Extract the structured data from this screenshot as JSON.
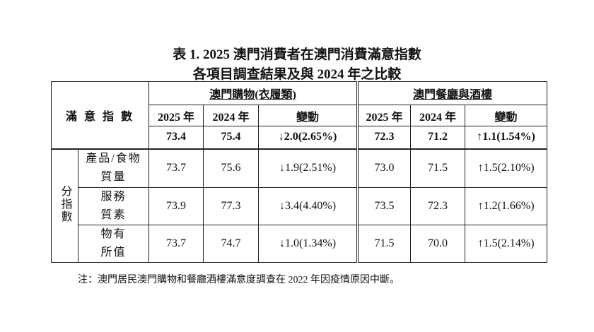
{
  "title": {
    "line1": "表 1. 2025 澳門消費者在澳門消費滿意指數",
    "line2": "各項目調查結果及與 2024 年之比較"
  },
  "table": {
    "corner": "滿 意 指 數",
    "groups": [
      "澳門購物(衣履類)",
      "澳門餐廳與酒樓"
    ],
    "subheaders": [
      "2025 年",
      "2024 年",
      "變動",
      "2025 年",
      "2024 年",
      "變動"
    ],
    "overall": [
      "73.4",
      "75.4",
      "↓2.0(2.65%)",
      "72.3",
      "71.2",
      "↑1.1(1.54%)"
    ],
    "sub_label": "分指數",
    "rows": [
      {
        "label": [
          "產品/食物",
          "質量"
        ],
        "cells": [
          "73.7",
          "75.6",
          "↓1.9(2.51%)",
          "73.0",
          "71.5",
          "↑1.5(2.10%)"
        ]
      },
      {
        "label": [
          "服務",
          "質素"
        ],
        "cells": [
          "73.9",
          "77.3",
          "↓3.4(4.40%)",
          "73.5",
          "72.3",
          "↑1.2(1.66%)"
        ]
      },
      {
        "label": [
          "物有",
          "所值"
        ],
        "cells": [
          "73.7",
          "74.7",
          "↓1.0(1.34%)",
          "71.5",
          "70.0",
          "↑1.5(2.14%)"
        ]
      }
    ]
  },
  "note": "注：澳門居民澳門購物和餐廳酒樓滿意度調查在 2022 年因疫情原因中斷。"
}
